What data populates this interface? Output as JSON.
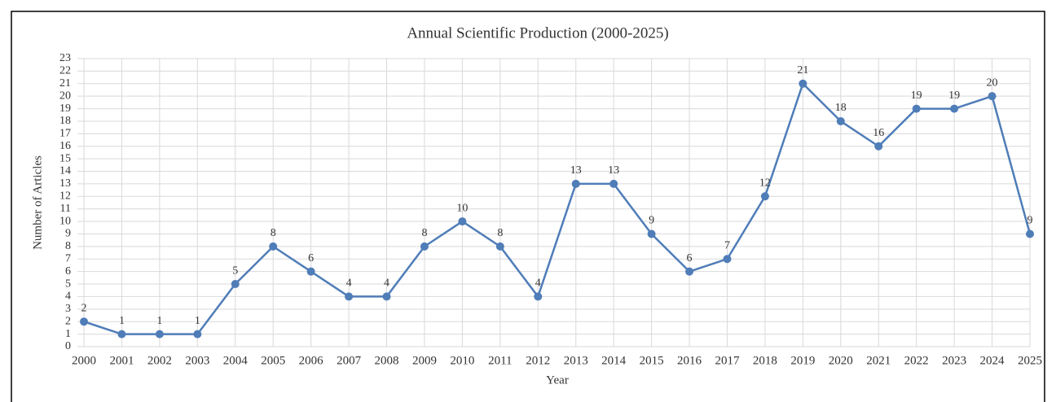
{
  "chart_data": {
    "type": "line",
    "title": "Annual Scientific Production (2000-2025)",
    "x_label": "Year",
    "y_label": "Number of Articles",
    "categories": [
      "2000",
      "2001",
      "2002",
      "2003",
      "2004",
      "2005",
      "2006",
      "2007",
      "2008",
      "2009",
      "2010",
      "2011",
      "2012",
      "2013",
      "2014",
      "2015",
      "2016",
      "2017",
      "2018",
      "2019",
      "2020",
      "2021",
      "2022",
      "2023",
      "2024",
      "2025"
    ],
    "series": [
      {
        "name": "Number of Articles",
        "color": "#4f7db8",
        "values": [
          2,
          1,
          1,
          1,
          5,
          8,
          6,
          4,
          4,
          8,
          10,
          8,
          4,
          13,
          13,
          9,
          6,
          7,
          12,
          21,
          18,
          16,
          19,
          19,
          20,
          9
        ]
      }
    ],
    "ylim": [
      0,
      23
    ],
    "yticks": [
      0,
      1,
      2,
      3,
      4,
      5,
      6,
      7,
      8,
      9,
      10,
      11,
      12,
      13,
      14,
      15,
      16,
      17,
      18,
      19,
      20,
      21,
      22,
      23
    ],
    "grid": true,
    "data_labels": true
  }
}
